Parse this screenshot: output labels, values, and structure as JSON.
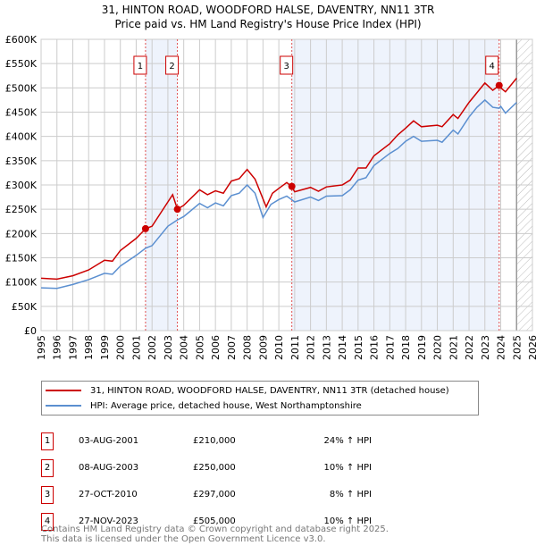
{
  "title": "31, HINTON ROAD, WOODFORD HALSE, DAVENTRY, NN11 3TR",
  "subtitle": "Price paid vs. HM Land Registry's House Price Index (HPI)",
  "chart_data": {
    "type": "line",
    "title": "31, HINTON ROAD, WOODFORD HALSE, DAVENTRY, NN11 3TR",
    "subtitle": "Price paid vs. HM Land Registry's House Price Index (HPI)",
    "xlim": [
      1995,
      2026
    ],
    "ylim": [
      0,
      600000
    ],
    "x_ticks": [
      "1995",
      "1996",
      "1997",
      "1998",
      "1999",
      "2000",
      "2001",
      "2002",
      "2003",
      "2004",
      "2005",
      "2006",
      "2007",
      "2008",
      "2009",
      "2010",
      "2011",
      "2012",
      "2013",
      "2014",
      "2015",
      "2016",
      "2017",
      "2018",
      "2019",
      "2020",
      "2021",
      "2022",
      "2023",
      "2024",
      "2025",
      "2026"
    ],
    "y_ticks": [
      "£0",
      "£50K",
      "£100K",
      "£150K",
      "£200K",
      "£250K",
      "£300K",
      "£350K",
      "£400K",
      "£450K",
      "£500K",
      "£550K",
      "£600K"
    ],
    "grid": true,
    "series": [
      {
        "name": "31, HINTON ROAD, WOODFORD HALSE, DAVENTRY, NN11 3TR (detached house)",
        "color": "#cc0000",
        "x": [
          1995,
          1996,
          1997,
          1998,
          1999,
          1999.5,
          2000,
          2001,
          2001.6,
          2002,
          2003,
          2003.3,
          2003.6,
          2004,
          2005,
          2005.5,
          2006,
          2006.5,
          2007,
          2007.5,
          2008,
          2008.5,
          2009.2,
          2009.6,
          2010,
          2010.5,
          2010.8,
          2011,
          2012,
          2012.5,
          2013,
          2014,
          2014.5,
          2015,
          2015.5,
          2016,
          2017,
          2017.5,
          2018,
          2018.5,
          2019,
          2020,
          2020.3,
          2021,
          2021.3,
          2022,
          2022.5,
          2023,
          2023.5,
          2023.9,
          2024,
          2024.3,
          2025
        ],
        "y": [
          108000,
          106000,
          113000,
          125000,
          145000,
          143000,
          165000,
          190000,
          210000,
          215000,
          265000,
          280000,
          250000,
          258000,
          290000,
          280000,
          288000,
          283000,
          308000,
          313000,
          332000,
          312000,
          255000,
          283000,
          293000,
          305000,
          297000,
          286000,
          295000,
          287000,
          296000,
          300000,
          310000,
          335000,
          335000,
          360000,
          385000,
          403000,
          417000,
          432000,
          420000,
          423000,
          420000,
          445000,
          437000,
          470000,
          490000,
          510000,
          495000,
          505000,
          500000,
          492000,
          520000
        ]
      },
      {
        "name": "HPI: Average price, detached house, West Northamptonshire",
        "color": "#5b8fd0",
        "x": [
          1995,
          1996,
          1997,
          1998,
          1999,
          1999.5,
          2000,
          2001,
          2001.6,
          2002,
          2003,
          2003.6,
          2004,
          2005,
          2005.5,
          2006,
          2006.5,
          2007,
          2007.5,
          2008,
          2008.5,
          2009,
          2009.5,
          2010,
          2010.5,
          2010.8,
          2011,
          2012,
          2012.5,
          2013,
          2014,
          2014.5,
          2015,
          2015.5,
          2016,
          2017,
          2017.5,
          2018,
          2018.5,
          2019,
          2020,
          2020.3,
          2021,
          2021.3,
          2022,
          2022.5,
          2023,
          2023.5,
          2023.9,
          2024,
          2024.3,
          2025
        ],
        "y": [
          88000,
          87000,
          95000,
          105000,
          118000,
          116000,
          133000,
          155000,
          170000,
          175000,
          215000,
          228000,
          235000,
          262000,
          253000,
          263000,
          257000,
          278000,
          283000,
          300000,
          283000,
          233000,
          260000,
          270000,
          277000,
          270000,
          265000,
          275000,
          268000,
          277000,
          278000,
          290000,
          310000,
          315000,
          340000,
          365000,
          375000,
          390000,
          400000,
          390000,
          392000,
          388000,
          413000,
          405000,
          440000,
          460000,
          475000,
          460000,
          458000,
          462000,
          448000,
          470000
        ]
      }
    ],
    "sales": [
      {
        "label": "1",
        "date": "03-AUG-2001",
        "x": 2001.59,
        "price": "£210,000",
        "value": 210000,
        "hpi": "24% ↑ HPI"
      },
      {
        "label": "2",
        "date": "08-AUG-2003",
        "x": 2003.6,
        "price": "£250,000",
        "value": 250000,
        "hpi": "10% ↑ HPI"
      },
      {
        "label": "3",
        "date": "27-OCT-2010",
        "x": 2010.82,
        "price": "£297,000",
        "value": 297000,
        "hpi": "8% ↑ HPI"
      },
      {
        "label": "4",
        "date": "27-NOV-2023",
        "x": 2023.9,
        "price": "£505,000",
        "value": 505000,
        "hpi": "10% ↑ HPI"
      }
    ],
    "shaded": [
      [
        2001.59,
        2003.6
      ],
      [
        2010.82,
        2023.9
      ]
    ],
    "forecast_start": 2025,
    "legend": "below"
  },
  "footer": {
    "line1": "Contains HM Land Registry data © Crown copyright and database right 2025.",
    "line2": "This data is licensed under the Open Government Licence v3.0."
  }
}
